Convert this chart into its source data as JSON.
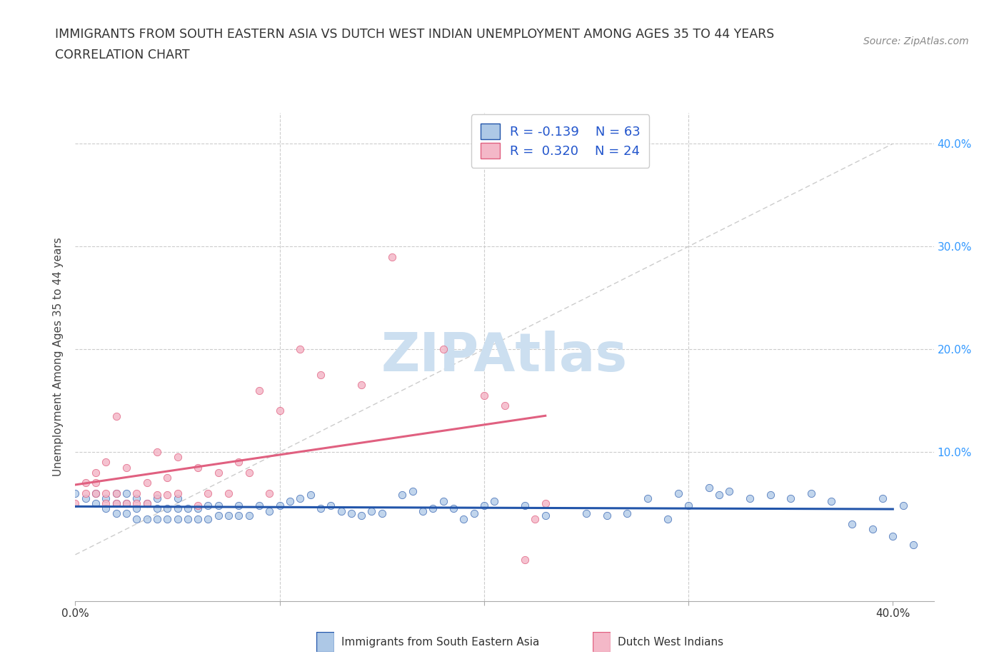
{
  "title_line1": "IMMIGRANTS FROM SOUTH EASTERN ASIA VS DUTCH WEST INDIAN UNEMPLOYMENT AMONG AGES 35 TO 44 YEARS",
  "title_line2": "CORRELATION CHART",
  "source_text": "Source: ZipAtlas.com",
  "ylabel": "Unemployment Among Ages 35 to 44 years",
  "xlim": [
    0.0,
    0.42
  ],
  "ylim": [
    -0.045,
    0.43
  ],
  "grid_color": "#cccccc",
  "background_color": "#ffffff",
  "watermark_text": "ZIPAtlas",
  "watermark_color": "#ccdff0",
  "color_sea": "#adc8e6",
  "color_dwi": "#f4b8c8",
  "trendline_sea_color": "#2255aa",
  "trendline_dwi_color": "#e06080",
  "trendline_ref_color": "#cccccc",
  "sea_x": [
    0.0,
    0.005,
    0.01,
    0.01,
    0.015,
    0.015,
    0.02,
    0.02,
    0.02,
    0.025,
    0.025,
    0.025,
    0.03,
    0.03,
    0.03,
    0.035,
    0.035,
    0.04,
    0.04,
    0.04,
    0.045,
    0.045,
    0.05,
    0.05,
    0.05,
    0.055,
    0.055,
    0.06,
    0.06,
    0.065,
    0.065,
    0.07,
    0.07,
    0.075,
    0.08,
    0.08,
    0.085,
    0.09,
    0.095,
    0.1,
    0.105,
    0.11,
    0.115,
    0.12,
    0.125,
    0.13,
    0.135,
    0.14,
    0.145,
    0.15,
    0.16,
    0.165,
    0.17,
    0.175,
    0.18,
    0.185,
    0.19,
    0.195,
    0.2,
    0.205,
    0.22,
    0.23,
    0.25,
    0.26,
    0.27,
    0.28,
    0.29,
    0.295,
    0.3,
    0.31,
    0.315,
    0.32,
    0.33,
    0.34,
    0.35,
    0.36,
    0.37,
    0.38,
    0.39,
    0.395,
    0.4,
    0.405,
    0.41
  ],
  "sea_y": [
    0.06,
    0.055,
    0.05,
    0.06,
    0.045,
    0.055,
    0.04,
    0.05,
    0.06,
    0.04,
    0.05,
    0.06,
    0.035,
    0.045,
    0.055,
    0.035,
    0.05,
    0.035,
    0.045,
    0.055,
    0.035,
    0.045,
    0.035,
    0.045,
    0.055,
    0.035,
    0.045,
    0.035,
    0.045,
    0.035,
    0.048,
    0.038,
    0.048,
    0.038,
    0.038,
    0.048,
    0.038,
    0.048,
    0.042,
    0.048,
    0.052,
    0.055,
    0.058,
    0.045,
    0.048,
    0.042,
    0.04,
    0.038,
    0.042,
    0.04,
    0.058,
    0.062,
    0.042,
    0.045,
    0.052,
    0.045,
    0.035,
    0.04,
    0.048,
    0.052,
    0.048,
    0.038,
    0.04,
    0.038,
    0.04,
    0.055,
    0.035,
    0.06,
    0.048,
    0.065,
    0.058,
    0.062,
    0.055,
    0.058,
    0.055,
    0.06,
    0.052,
    0.03,
    0.025,
    0.055,
    0.018,
    0.048,
    0.01
  ],
  "dwi_x": [
    0.0,
    0.005,
    0.005,
    0.01,
    0.01,
    0.01,
    0.015,
    0.015,
    0.015,
    0.02,
    0.02,
    0.02,
    0.025,
    0.025,
    0.03,
    0.03,
    0.035,
    0.035,
    0.04,
    0.04,
    0.045,
    0.045,
    0.05,
    0.05,
    0.06,
    0.06,
    0.065,
    0.07,
    0.075,
    0.08,
    0.085,
    0.09,
    0.095,
    0.1,
    0.11,
    0.12,
    0.14,
    0.155,
    0.18,
    0.2,
    0.21,
    0.22,
    0.225,
    0.23
  ],
  "dwi_y": [
    0.05,
    0.06,
    0.07,
    0.06,
    0.07,
    0.08,
    0.05,
    0.06,
    0.09,
    0.05,
    0.06,
    0.135,
    0.05,
    0.085,
    0.05,
    0.06,
    0.05,
    0.07,
    0.058,
    0.1,
    0.058,
    0.075,
    0.06,
    0.095,
    0.048,
    0.085,
    0.06,
    0.08,
    0.06,
    0.09,
    0.08,
    0.16,
    0.06,
    0.14,
    0.2,
    0.175,
    0.165,
    0.29,
    0.2,
    0.155,
    0.145,
    -0.005,
    0.035,
    0.05
  ]
}
